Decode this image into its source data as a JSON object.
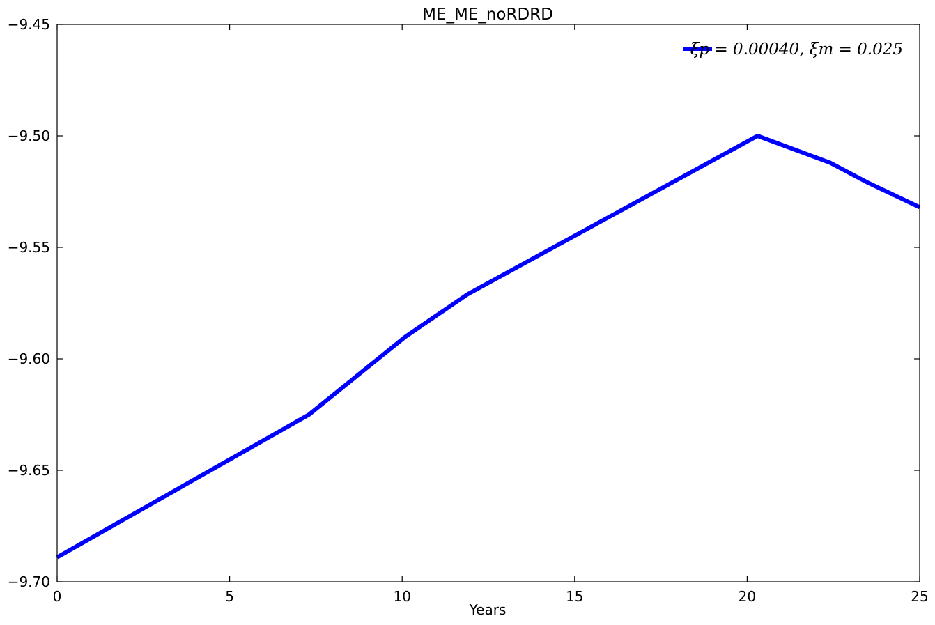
{
  "chart_data": {
    "type": "line",
    "title": "ME_ME_noRDRD",
    "xlabel": "Years",
    "ylabel": "",
    "xlim": [
      0,
      25
    ],
    "ylim": [
      -9.7,
      -9.45
    ],
    "x_ticks": [
      0,
      5,
      10,
      15,
      20,
      25
    ],
    "x_tick_labels": [
      "0",
      "5",
      "10",
      "15",
      "20",
      "25"
    ],
    "y_ticks": [
      -9.45,
      -9.5,
      -9.55,
      -9.6,
      -9.65,
      -9.7
    ],
    "y_tick_labels": [
      "−9.45",
      "−9.50",
      "−9.55",
      "−9.60",
      "−9.65",
      "−9.70"
    ],
    "grid": false,
    "legend_position": "top-right",
    "series": [
      {
        "name": "ξp = 0.00040, ξm = 0.025",
        "color": "#0000ff",
        "x": [
          0,
          7.3,
          10.1,
          11.9,
          20.3,
          22.4,
          23.5,
          25
        ],
        "y": [
          -9.689,
          -9.625,
          -9.59,
          -9.571,
          -9.5,
          -9.512,
          -9.521,
          -9.532
        ]
      }
    ]
  }
}
